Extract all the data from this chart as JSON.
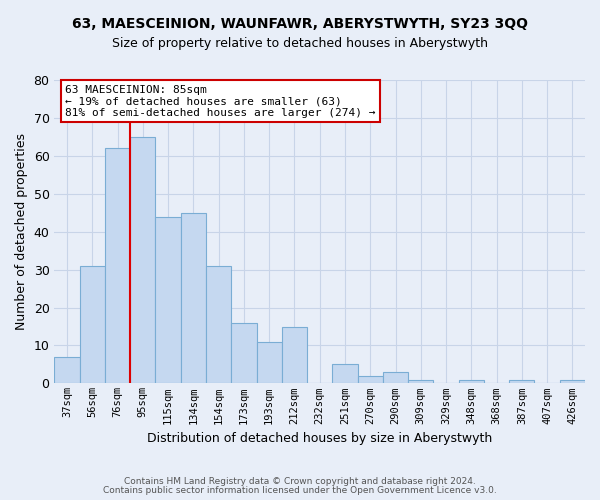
{
  "title": "63, MAESCEINION, WAUNFAWR, ABERYSTWYTH, SY23 3QQ",
  "subtitle": "Size of property relative to detached houses in Aberystwyth",
  "xlabel": "Distribution of detached houses by size in Aberystwyth",
  "ylabel": "Number of detached properties",
  "bar_labels": [
    "37sqm",
    "56sqm",
    "76sqm",
    "95sqm",
    "115sqm",
    "134sqm",
    "154sqm",
    "173sqm",
    "193sqm",
    "212sqm",
    "232sqm",
    "251sqm",
    "270sqm",
    "290sqm",
    "309sqm",
    "329sqm",
    "348sqm",
    "368sqm",
    "387sqm",
    "407sqm",
    "426sqm"
  ],
  "bar_values": [
    7,
    31,
    62,
    65,
    44,
    45,
    31,
    16,
    11,
    15,
    0,
    5,
    2,
    3,
    1,
    0,
    1,
    0,
    1,
    0,
    1
  ],
  "bar_color": "#c5d8f0",
  "bar_edge_color": "#7aadd4",
  "background_color": "#e8eef8",
  "grid_color": "#c8d4e8",
  "ylim": [
    0,
    80
  ],
  "yticks": [
    0,
    10,
    20,
    30,
    40,
    50,
    60,
    70,
    80
  ],
  "red_line_x": 2.5,
  "red_line_color": "#dd0000",
  "annotation_line1": "63 MAESCEINION: 85sqm",
  "annotation_line2": "← 19% of detached houses are smaller (63)",
  "annotation_line3": "81% of semi-detached houses are larger (274) →",
  "footer_text1": "Contains HM Land Registry data © Crown copyright and database right 2024.",
  "footer_text2": "Contains public sector information licensed under the Open Government Licence v3.0."
}
